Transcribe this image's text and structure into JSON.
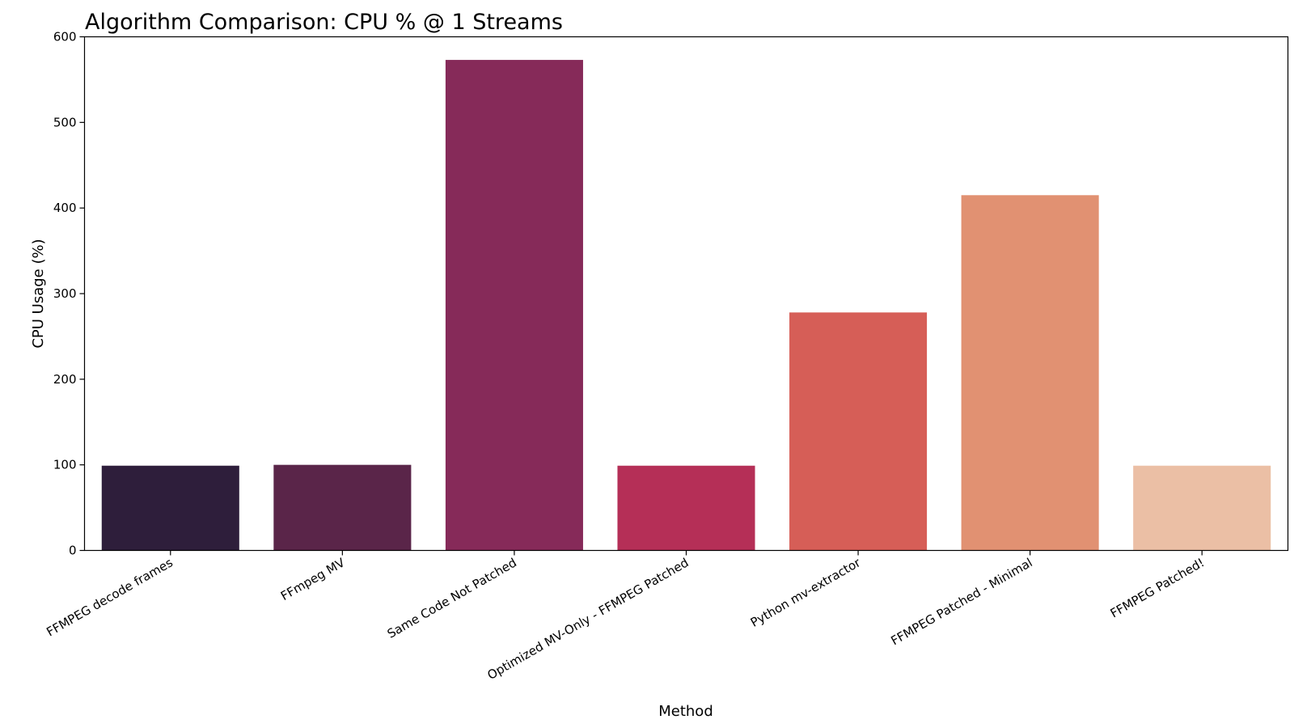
{
  "chart_data": {
    "type": "bar",
    "title": "Algorithm Comparison: CPU % @ 1 Streams",
    "xlabel": "Method",
    "ylabel": "CPU Usage (%)",
    "ylim": [
      0,
      600
    ],
    "yticks": [
      0,
      100,
      200,
      300,
      400,
      500,
      600
    ],
    "grid": false,
    "categories": [
      "FFMPEG decode frames",
      "FFmpeg MV",
      "Same Code Not Patched",
      "Optimized MV-Only - FFMPEG Patched",
      "Python mv-extractor",
      "FFMPEG Patched - Minimal",
      "FFMPEG Patched!"
    ],
    "values": [
      99,
      100,
      573,
      99,
      278,
      415,
      99
    ],
    "colors": [
      "#2e1e3b",
      "#5a2549",
      "#862a59",
      "#b52f57",
      "#d65e57",
      "#e19172",
      "#ebbfa5"
    ]
  }
}
